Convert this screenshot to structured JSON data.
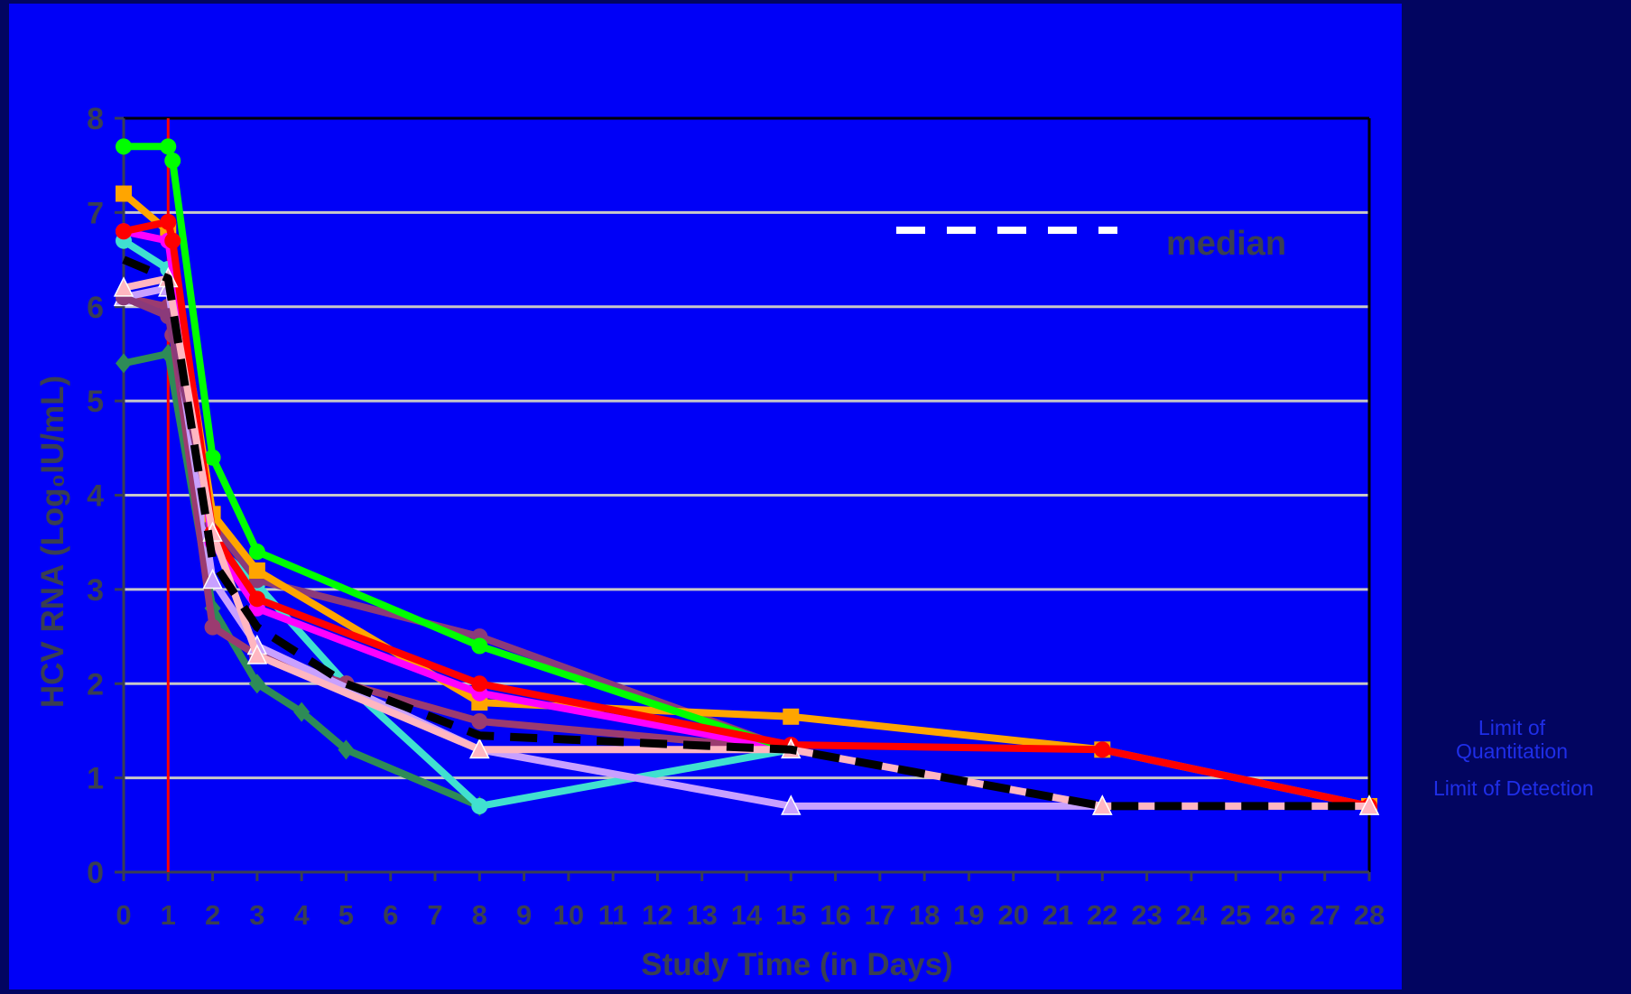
{
  "colors": {
    "page_bg": "#020560",
    "panel_bg": "#0000f7",
    "grid": "#c8c8c8",
    "axis_text": "#3a3f52",
    "side_text": "#1f2ee8",
    "dose_line": "#ff0000"
  },
  "side_labels": {
    "loq_line1": "Limit of",
    "loq_line2": "Quantitation",
    "lod": "Limit of Detection"
  },
  "chart_data": {
    "type": "line",
    "xlabel": "Study Time (in Days)",
    "ylabel": "HCV RNA (Log₀IU/mL)",
    "xlim": [
      0,
      28
    ],
    "ylim": [
      0,
      8
    ],
    "x_ticks": [
      0,
      1,
      2,
      3,
      4,
      5,
      6,
      7,
      8,
      9,
      10,
      11,
      12,
      13,
      14,
      15,
      16,
      17,
      18,
      19,
      20,
      21,
      22,
      23,
      24,
      25,
      26,
      27,
      28
    ],
    "y_ticks": [
      0,
      1,
      2,
      3,
      4,
      5,
      6,
      7,
      8
    ],
    "grid": "horizontal",
    "vertical_marker_x": 1,
    "legend": {
      "position": "top-right",
      "label": "median",
      "swatch": "white dashed line"
    },
    "series": [
      {
        "color": "#2e8b57",
        "marker": "diamond",
        "points": [
          [
            0,
            5.4
          ],
          [
            1,
            5.5
          ],
          [
            2,
            2.8
          ],
          [
            3,
            2.0
          ],
          [
            4,
            1.7
          ],
          [
            5,
            1.3
          ],
          [
            8,
            0.7
          ]
        ]
      },
      {
        "color": "#40e0d0",
        "marker": "circle",
        "points": [
          [
            0,
            6.7
          ],
          [
            1,
            6.4
          ],
          [
            2,
            3.5
          ],
          [
            3,
            3.05
          ],
          [
            5,
            2.0
          ],
          [
            8,
            0.7
          ],
          [
            15,
            1.3
          ]
        ]
      },
      {
        "color": "#9b3b70",
        "marker": "circle",
        "points": [
          [
            0,
            6.1
          ],
          [
            1,
            6.0
          ],
          [
            1.1,
            5.7
          ],
          [
            2,
            2.6
          ],
          [
            3,
            2.3
          ],
          [
            5,
            2.0
          ],
          [
            8,
            1.6
          ],
          [
            15,
            1.3
          ]
        ]
      },
      {
        "color": "#c8a0ff",
        "marker": "triangle",
        "points": [
          [
            0,
            6.1
          ],
          [
            1,
            6.2
          ],
          [
            2,
            3.1
          ],
          [
            3,
            2.4
          ],
          [
            8,
            1.3
          ],
          [
            15,
            0.7
          ],
          [
            22,
            0.7
          ],
          [
            28,
            0.7
          ]
        ]
      },
      {
        "color": "#8b3a7a",
        "marker": "circle",
        "points": [
          [
            0,
            6.1
          ],
          [
            1,
            5.9
          ],
          [
            2,
            3.7
          ],
          [
            3,
            3.1
          ],
          [
            8,
            2.5
          ],
          [
            15,
            1.3
          ]
        ]
      },
      {
        "color": "#ffa500",
        "marker": "square",
        "points": [
          [
            0,
            7.2
          ],
          [
            1,
            6.8
          ],
          [
            2,
            3.8
          ],
          [
            3,
            3.2
          ],
          [
            8,
            1.8
          ],
          [
            15,
            1.65
          ],
          [
            22,
            1.3
          ],
          [
            28,
            0.7
          ]
        ]
      },
      {
        "color": "#ff00ff",
        "marker": "circle",
        "points": [
          [
            0,
            6.8
          ],
          [
            1,
            6.7
          ],
          [
            2,
            3.5
          ],
          [
            3,
            2.8
          ],
          [
            8,
            1.9
          ],
          [
            15,
            1.3
          ]
        ]
      },
      {
        "color": "#00ff00",
        "marker": "circle",
        "points": [
          [
            0,
            7.7
          ],
          [
            1,
            7.7
          ],
          [
            1.1,
            7.55
          ],
          [
            2,
            4.4
          ],
          [
            3,
            3.4
          ],
          [
            8,
            2.4
          ],
          [
            15,
            1.3
          ]
        ]
      },
      {
        "color": "#ff0000",
        "marker": "circle",
        "points": [
          [
            0,
            6.8
          ],
          [
            1,
            6.9
          ],
          [
            1.1,
            6.7
          ],
          [
            2,
            3.6
          ],
          [
            3,
            2.9
          ],
          [
            8,
            2.0
          ],
          [
            15,
            1.35
          ],
          [
            22,
            1.3
          ],
          [
            28,
            0.7
          ]
        ]
      },
      {
        "color": "#ffb6c1",
        "marker": "triangle",
        "points": [
          [
            0,
            6.2
          ],
          [
            1,
            6.3
          ],
          [
            2,
            3.6
          ],
          [
            3,
            2.3
          ],
          [
            8,
            1.3
          ],
          [
            15,
            1.3
          ],
          [
            22,
            0.7
          ],
          [
            28,
            0.7
          ]
        ]
      },
      {
        "color": "#000000",
        "dashed": true,
        "marker": "none",
        "points": [
          [
            0,
            6.5
          ],
          [
            1,
            6.3
          ],
          [
            2,
            3.3
          ],
          [
            3,
            2.6
          ],
          [
            5,
            2.0
          ],
          [
            8,
            1.45
          ],
          [
            15,
            1.3
          ],
          [
            22,
            0.7
          ],
          [
            28,
            0.7
          ]
        ]
      }
    ]
  }
}
